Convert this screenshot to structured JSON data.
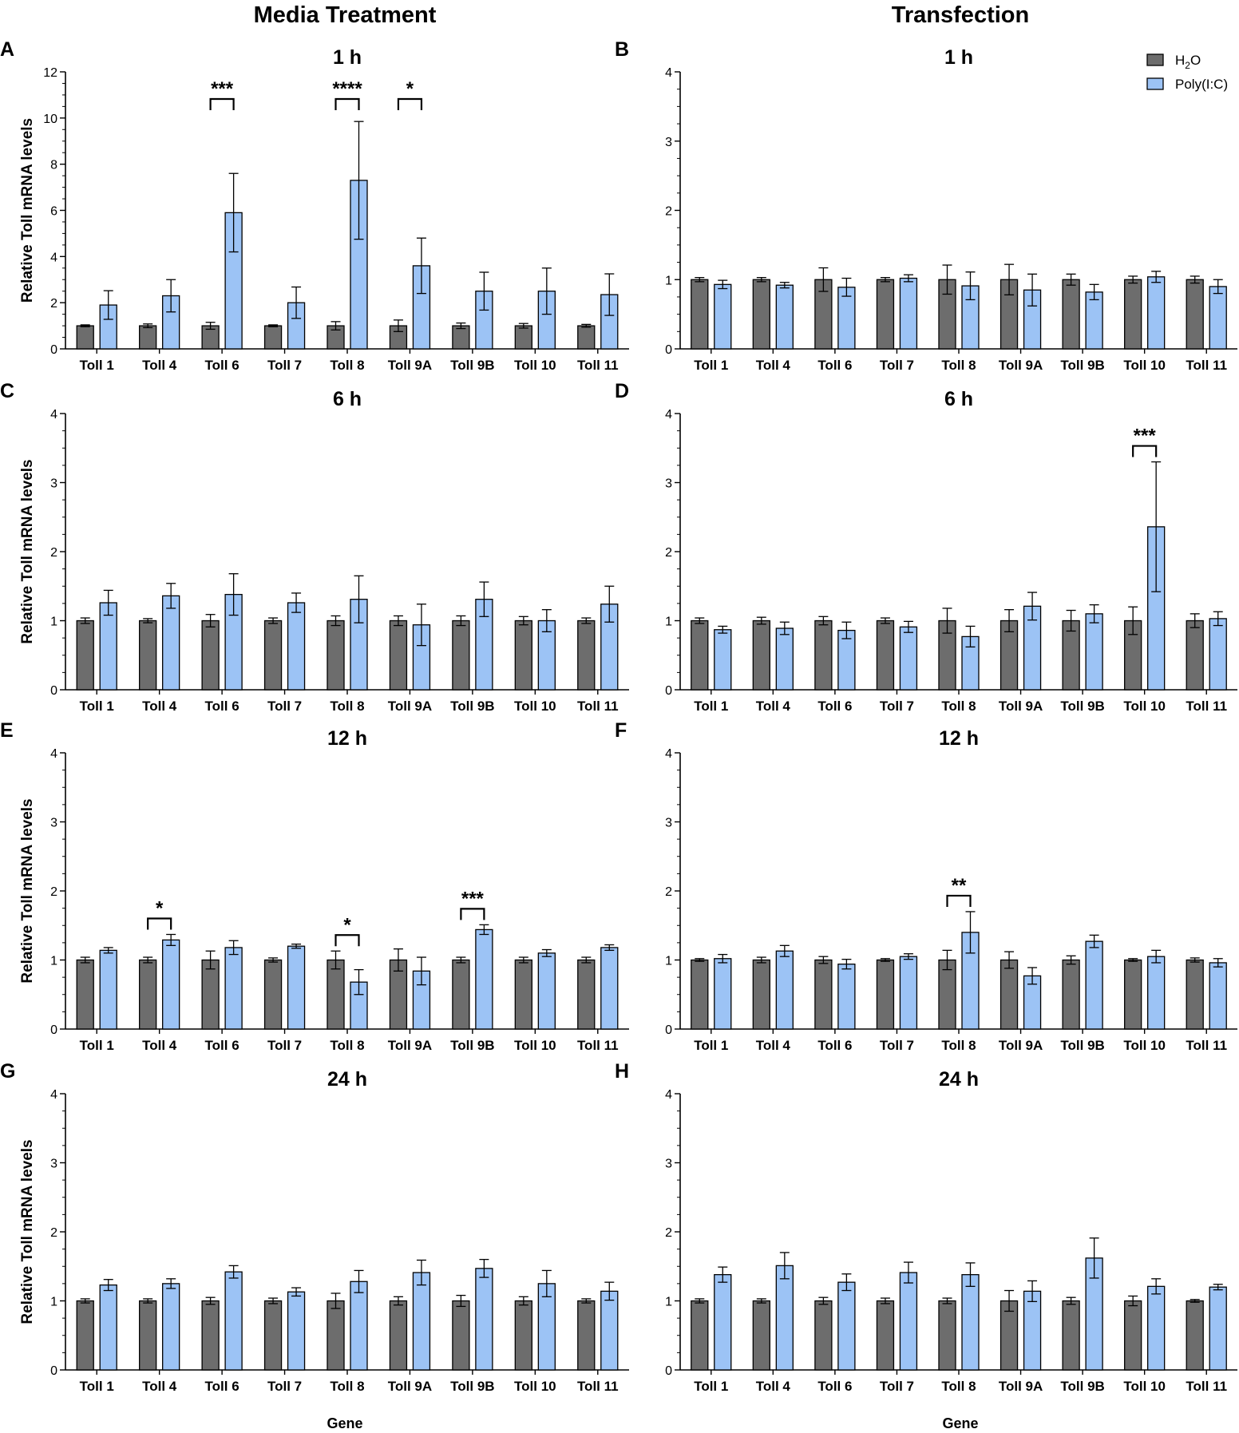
{
  "columns": {
    "left_title": "Media Treatment",
    "right_title": "Transfection"
  },
  "x_axis_label": "Gene",
  "legend": [
    {
      "main": "H",
      "sub": "2",
      "rest": "O",
      "color": "#6d6d6d"
    },
    {
      "main": "Poly(I:C)",
      "sub": "",
      "rest": "",
      "color": "#9cc3f5"
    }
  ],
  "colors": {
    "h2o": "#6d6d6d",
    "polyic": "#9cc3f5",
    "axis": "#000000"
  },
  "chart_data": [
    {
      "type": "bar",
      "panel": "A",
      "title": "1 h",
      "ylabel": "Relative Toll mRNA levels",
      "ylim": [
        0,
        12
      ],
      "yticks": [
        0,
        2,
        4,
        6,
        8,
        10,
        12
      ],
      "categories": [
        "Toll 1",
        "Toll 4",
        "Toll 6",
        "Toll 7",
        "Toll 8",
        "Toll 9A",
        "Toll 9B",
        "Toll 10",
        "Toll 11"
      ],
      "series": [
        {
          "name": "H2O",
          "values": [
            1.0,
            1.0,
            1.0,
            1.0,
            1.0,
            1.0,
            1.0,
            1.0,
            1.0
          ],
          "errors": [
            0.04,
            0.08,
            0.15,
            0.04,
            0.18,
            0.25,
            0.12,
            0.1,
            0.06
          ]
        },
        {
          "name": "Poly(I:C)",
          "values": [
            1.9,
            2.3,
            5.9,
            2.0,
            7.3,
            3.6,
            2.5,
            2.5,
            2.35
          ],
          "errors": [
            0.62,
            0.7,
            1.7,
            0.68,
            2.55,
            1.2,
            0.82,
            1.0,
            0.9
          ]
        }
      ],
      "significance": [
        {
          "category": 2,
          "label": "***"
        },
        {
          "category": 4,
          "label": "****"
        },
        {
          "category": 5,
          "label": "*"
        }
      ]
    },
    {
      "type": "bar",
      "panel": "B",
      "title": "1 h",
      "ylabel": "",
      "ylim": [
        0,
        4
      ],
      "yticks": [
        0,
        1,
        2,
        3,
        4
      ],
      "categories": [
        "Toll 1",
        "Toll 4",
        "Toll 6",
        "Toll 7",
        "Toll 8",
        "Toll 9A",
        "Toll 9B",
        "Toll 10",
        "Toll 11"
      ],
      "series": [
        {
          "name": "H2O",
          "values": [
            1.0,
            1.0,
            1.0,
            1.0,
            1.0,
            1.0,
            1.0,
            1.0,
            1.0
          ],
          "errors": [
            0.03,
            0.03,
            0.17,
            0.03,
            0.21,
            0.22,
            0.08,
            0.05,
            0.05
          ]
        },
        {
          "name": "Poly(I:C)",
          "values": [
            0.93,
            0.92,
            0.89,
            1.02,
            0.91,
            0.85,
            0.82,
            1.04,
            0.9
          ],
          "errors": [
            0.06,
            0.04,
            0.13,
            0.05,
            0.2,
            0.23,
            0.11,
            0.08,
            0.1
          ]
        }
      ],
      "significance": []
    },
    {
      "type": "bar",
      "panel": "C",
      "title": "6 h",
      "ylabel": "Relative Toll mRNA levels",
      "ylim": [
        0,
        4
      ],
      "yticks": [
        0,
        1,
        2,
        3,
        4
      ],
      "categories": [
        "Toll 1",
        "Toll 4",
        "Toll 6",
        "Toll 7",
        "Toll 8",
        "Toll 9A",
        "Toll 9B",
        "Toll 10",
        "Toll 11"
      ],
      "series": [
        {
          "name": "H2O",
          "values": [
            1.0,
            1.0,
            1.0,
            1.0,
            1.0,
            1.0,
            1.0,
            1.0,
            1.0
          ],
          "errors": [
            0.04,
            0.03,
            0.09,
            0.04,
            0.07,
            0.07,
            0.07,
            0.06,
            0.04
          ]
        },
        {
          "name": "Poly(I:C)",
          "values": [
            1.26,
            1.36,
            1.38,
            1.26,
            1.31,
            0.94,
            1.31,
            1.0,
            1.24
          ],
          "errors": [
            0.18,
            0.18,
            0.3,
            0.14,
            0.34,
            0.3,
            0.25,
            0.16,
            0.26
          ]
        }
      ],
      "significance": []
    },
    {
      "type": "bar",
      "panel": "D",
      "title": "6 h",
      "ylabel": "",
      "ylim": [
        0,
        4
      ],
      "yticks": [
        0,
        1,
        2,
        3,
        4
      ],
      "categories": [
        "Toll 1",
        "Toll 4",
        "Toll 6",
        "Toll 7",
        "Toll 8",
        "Toll 9A",
        "Toll 9B",
        "Toll 10",
        "Toll 11"
      ],
      "series": [
        {
          "name": "H2O",
          "values": [
            1.0,
            1.0,
            1.0,
            1.0,
            1.0,
            1.0,
            1.0,
            1.0,
            1.0
          ],
          "errors": [
            0.04,
            0.05,
            0.06,
            0.04,
            0.18,
            0.16,
            0.15,
            0.2,
            0.1
          ]
        },
        {
          "name": "Poly(I:C)",
          "values": [
            0.87,
            0.89,
            0.86,
            0.91,
            0.77,
            1.21,
            1.1,
            2.36,
            1.03
          ],
          "errors": [
            0.05,
            0.09,
            0.12,
            0.08,
            0.15,
            0.2,
            0.13,
            0.94,
            0.1
          ]
        }
      ],
      "significance": [
        {
          "category": 7,
          "label": "***"
        }
      ]
    },
    {
      "type": "bar",
      "panel": "E",
      "title": "12 h",
      "ylabel": "Relative Toll mRNA levels",
      "ylim": [
        0,
        4
      ],
      "yticks": [
        0,
        1,
        2,
        3,
        4
      ],
      "categories": [
        "Toll 1",
        "Toll 4",
        "Toll 6",
        "Toll 7",
        "Toll 8",
        "Toll 9A",
        "Toll 9B",
        "Toll 10",
        "Toll 11"
      ],
      "series": [
        {
          "name": "H2O",
          "values": [
            1.0,
            1.0,
            1.0,
            1.0,
            1.0,
            1.0,
            1.0,
            1.0,
            1.0
          ],
          "errors": [
            0.04,
            0.04,
            0.13,
            0.03,
            0.13,
            0.16,
            0.04,
            0.04,
            0.04
          ]
        },
        {
          "name": "Poly(I:C)",
          "values": [
            1.14,
            1.29,
            1.18,
            1.2,
            0.68,
            0.84,
            1.44,
            1.1,
            1.18
          ],
          "errors": [
            0.04,
            0.08,
            0.1,
            0.03,
            0.18,
            0.2,
            0.07,
            0.05,
            0.04
          ]
        }
      ],
      "significance": [
        {
          "category": 1,
          "label": "*"
        },
        {
          "category": 4,
          "label": "*"
        },
        {
          "category": 6,
          "label": "***"
        }
      ]
    },
    {
      "type": "bar",
      "panel": "F",
      "title": "12 h",
      "ylabel": "",
      "ylim": [
        0,
        4
      ],
      "yticks": [
        0,
        1,
        2,
        3,
        4
      ],
      "categories": [
        "Toll 1",
        "Toll 4",
        "Toll 6",
        "Toll 7",
        "Toll 8",
        "Toll 9A",
        "Toll 9B",
        "Toll 10",
        "Toll 11"
      ],
      "series": [
        {
          "name": "H2O",
          "values": [
            1.0,
            1.0,
            1.0,
            1.0,
            1.0,
            1.0,
            1.0,
            1.0,
            1.0
          ],
          "errors": [
            0.02,
            0.04,
            0.05,
            0.02,
            0.14,
            0.12,
            0.06,
            0.02,
            0.03
          ]
        },
        {
          "name": "Poly(I:C)",
          "values": [
            1.02,
            1.13,
            0.94,
            1.05,
            1.4,
            0.77,
            1.27,
            1.05,
            0.96
          ],
          "errors": [
            0.06,
            0.08,
            0.07,
            0.04,
            0.3,
            0.12,
            0.09,
            0.09,
            0.06
          ]
        }
      ],
      "significance": [
        {
          "category": 4,
          "label": "**"
        }
      ]
    },
    {
      "type": "bar",
      "panel": "G",
      "title": "24 h",
      "ylabel": "Relative Toll mRNA levels",
      "ylim": [
        0,
        4
      ],
      "yticks": [
        0,
        1,
        2,
        3,
        4
      ],
      "categories": [
        "Toll 1",
        "Toll 4",
        "Toll 6",
        "Toll 7",
        "Toll 8",
        "Toll 9A",
        "Toll 9B",
        "Toll 10",
        "Toll 11"
      ],
      "series": [
        {
          "name": "H2O",
          "values": [
            1.0,
            1.0,
            1.0,
            1.0,
            1.0,
            1.0,
            1.0,
            1.0,
            1.0
          ],
          "errors": [
            0.03,
            0.03,
            0.05,
            0.04,
            0.11,
            0.06,
            0.08,
            0.06,
            0.03
          ]
        },
        {
          "name": "Poly(I:C)",
          "values": [
            1.23,
            1.25,
            1.42,
            1.13,
            1.28,
            1.41,
            1.47,
            1.25,
            1.14
          ],
          "errors": [
            0.08,
            0.07,
            0.09,
            0.06,
            0.16,
            0.18,
            0.13,
            0.19,
            0.13
          ]
        }
      ],
      "significance": []
    },
    {
      "type": "bar",
      "panel": "H",
      "title": "24 h",
      "ylabel": "",
      "ylim": [
        0,
        4
      ],
      "yticks": [
        0,
        1,
        2,
        3,
        4
      ],
      "categories": [
        "Toll 1",
        "Toll 4",
        "Toll 6",
        "Toll 7",
        "Toll 8",
        "Toll 9A",
        "Toll 9B",
        "Toll 10",
        "Toll 11"
      ],
      "series": [
        {
          "name": "H2O",
          "values": [
            1.0,
            1.0,
            1.0,
            1.0,
            1.0,
            1.0,
            1.0,
            1.0,
            1.0
          ],
          "errors": [
            0.03,
            0.03,
            0.05,
            0.04,
            0.04,
            0.15,
            0.05,
            0.07,
            0.02
          ]
        },
        {
          "name": "Poly(I:C)",
          "values": [
            1.38,
            1.51,
            1.27,
            1.41,
            1.38,
            1.14,
            1.62,
            1.21,
            1.2
          ],
          "errors": [
            0.11,
            0.19,
            0.12,
            0.15,
            0.17,
            0.15,
            0.29,
            0.11,
            0.04
          ]
        }
      ],
      "significance": []
    }
  ]
}
